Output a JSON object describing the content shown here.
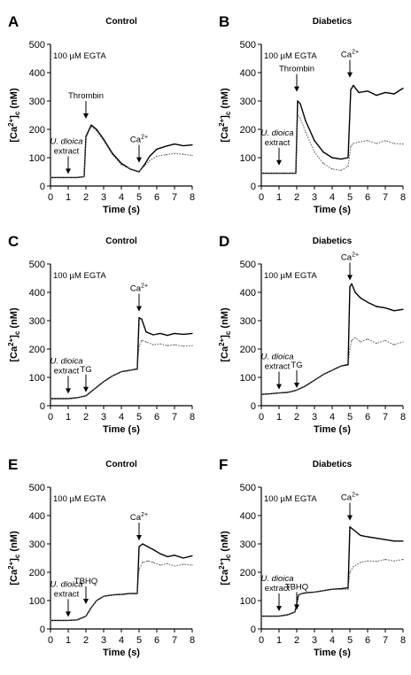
{
  "chart_data": [
    {
      "panel": "A",
      "title": "Control",
      "type": "line",
      "xlabel": "Time (s)",
      "ylabel": "[Ca2+]c (nM)",
      "xlim": [
        0,
        8
      ],
      "ylim": [
        0,
        500
      ],
      "xticks": [
        0,
        1,
        2,
        3,
        4,
        5,
        6,
        7,
        8
      ],
      "yticks": [
        0,
        100,
        200,
        300,
        400,
        500
      ],
      "egta_note": "100 µM EGTA",
      "annotations": [
        {
          "label": "U. dioica extract",
          "x": 1,
          "y": 30,
          "style": "italic-first"
        },
        {
          "label": "Thrombin",
          "x": 2,
          "y": 225
        },
        {
          "label": "Ca2+",
          "x": 5,
          "y": 70
        }
      ],
      "series": [
        {
          "style": "solid",
          "x": [
            0,
            0.5,
            1,
            1.5,
            1.9,
            2.0,
            2.3,
            2.6,
            3,
            3.5,
            4,
            4.5,
            5,
            5.3,
            5.6,
            6,
            6.5,
            7,
            7.5,
            8
          ],
          "values": [
            30,
            30,
            30,
            30,
            33,
            175,
            215,
            200,
            165,
            115,
            80,
            60,
            50,
            75,
            105,
            130,
            140,
            148,
            142,
            145
          ]
        },
        {
          "style": "dotted",
          "x": [
            0,
            0.5,
            1,
            1.5,
            1.9,
            2.0,
            2.3,
            2.6,
            3,
            3.5,
            4,
            4.5,
            5,
            5.3,
            5.6,
            6,
            6.5,
            7,
            7.5,
            8
          ],
          "values": [
            30,
            30,
            30,
            30,
            33,
            170,
            210,
            195,
            160,
            110,
            75,
            60,
            52,
            70,
            90,
            105,
            110,
            115,
            112,
            108
          ]
        }
      ]
    },
    {
      "panel": "B",
      "title": "Diabetics",
      "type": "line",
      "xlabel": "Time (s)",
      "ylabel": "[Ca2+]c (nM)",
      "xlim": [
        0,
        8
      ],
      "ylim": [
        0,
        500
      ],
      "xticks": [
        0,
        1,
        2,
        3,
        4,
        5,
        6,
        7,
        8
      ],
      "yticks": [
        0,
        100,
        200,
        300,
        400,
        500
      ],
      "egta_note": "100 µM EGTA",
      "annotations": [
        {
          "label": "U. dioica extract",
          "x": 1,
          "y": 60,
          "style": "italic-first"
        },
        {
          "label": "Thrombin",
          "x": 2,
          "y": 320
        },
        {
          "label": "Ca2+",
          "x": 5,
          "y": 370
        }
      ],
      "series": [
        {
          "style": "solid",
          "x": [
            0,
            0.5,
            1,
            1.5,
            1.95,
            2.05,
            2.2,
            2.5,
            3,
            3.5,
            4,
            4.5,
            4.9,
            5.05,
            5.2,
            5.5,
            6,
            6.5,
            7,
            7.5,
            8
          ],
          "values": [
            45,
            45,
            45,
            45,
            45,
            300,
            290,
            230,
            160,
            120,
            100,
            95,
            100,
            340,
            355,
            330,
            335,
            320,
            330,
            325,
            345
          ]
        },
        {
          "style": "dotted",
          "x": [
            0,
            0.5,
            1,
            1.5,
            1.95,
            2.05,
            2.2,
            2.5,
            3,
            3.5,
            4,
            4.5,
            4.9,
            5.05,
            5.2,
            5.5,
            6,
            6.5,
            7,
            7.5,
            8
          ],
          "values": [
            45,
            45,
            45,
            45,
            45,
            250,
            240,
            190,
            120,
            80,
            60,
            55,
            70,
            140,
            150,
            155,
            160,
            150,
            160,
            150,
            148
          ]
        }
      ]
    },
    {
      "panel": "C",
      "title": "Control",
      "type": "line",
      "xlabel": "Time (s)",
      "ylabel": "[Ca2+]c (nM)",
      "xlim": [
        0,
        8
      ],
      "ylim": [
        0,
        500
      ],
      "xticks": [
        0,
        1,
        2,
        3,
        4,
        5,
        6,
        7,
        8
      ],
      "yticks": [
        0,
        100,
        200,
        300,
        400,
        500
      ],
      "egta_note": "100 µM EGTA",
      "annotations": [
        {
          "label": "U. dioica extract",
          "x": 1,
          "y": 30,
          "style": "italic-first"
        },
        {
          "label": "TG",
          "x": 2,
          "y": 35
        },
        {
          "label": "Ca2+",
          "x": 5,
          "y": 320
        }
      ],
      "series": [
        {
          "style": "solid",
          "x": [
            0,
            0.5,
            1,
            1.5,
            2,
            2.5,
            3,
            3.5,
            4,
            4.5,
            4.9,
            5.0,
            5.15,
            5.4,
            5.8,
            6.2,
            6.6,
            7,
            7.5,
            8
          ],
          "values": [
            25,
            25,
            25,
            28,
            35,
            60,
            85,
            105,
            120,
            125,
            130,
            310,
            305,
            260,
            250,
            255,
            248,
            255,
            252,
            255
          ]
        },
        {
          "style": "dotted",
          "x": [
            0,
            0.5,
            1,
            1.5,
            2,
            2.5,
            3,
            3.5,
            4,
            4.5,
            4.9,
            5.0,
            5.15,
            5.4,
            5.8,
            6.2,
            6.6,
            7,
            7.5,
            8
          ],
          "values": [
            25,
            25,
            25,
            28,
            35,
            60,
            85,
            105,
            120,
            125,
            128,
            210,
            230,
            225,
            215,
            218,
            212,
            215,
            210,
            212
          ]
        }
      ]
    },
    {
      "panel": "D",
      "title": "Diabetics",
      "type": "line",
      "xlabel": "Time (s)",
      "ylabel": "[Ca2+]c (nM)",
      "xlim": [
        0,
        8
      ],
      "ylim": [
        0,
        500
      ],
      "xticks": [
        0,
        1,
        2,
        3,
        4,
        5,
        6,
        7,
        8
      ],
      "yticks": [
        0,
        100,
        200,
        300,
        400,
        500
      ],
      "egta_note": "100 µM EGTA",
      "annotations": [
        {
          "label": "U. dioica extract",
          "x": 1,
          "y": 45,
          "style": "italic-first"
        },
        {
          "label": "TG",
          "x": 2,
          "y": 50
        },
        {
          "label": "Ca2+",
          "x": 5,
          "y": 430
        }
      ],
      "series": [
        {
          "style": "solid",
          "x": [
            0,
            0.5,
            1,
            1.5,
            2,
            2.5,
            3,
            3.5,
            4,
            4.5,
            4.9,
            5.0,
            5.1,
            5.3,
            5.6,
            6,
            6.5,
            7,
            7.5,
            8
          ],
          "values": [
            40,
            42,
            45,
            47,
            55,
            70,
            90,
            110,
            125,
            140,
            145,
            420,
            430,
            400,
            380,
            365,
            350,
            345,
            335,
            340
          ]
        },
        {
          "style": "dotted",
          "x": [
            0,
            0.5,
            1,
            1.5,
            2,
            2.5,
            3,
            3.5,
            4,
            4.5,
            4.9,
            5.0,
            5.1,
            5.3,
            5.6,
            6,
            6.5,
            7,
            7.5,
            8
          ],
          "values": [
            40,
            42,
            45,
            47,
            55,
            70,
            90,
            110,
            125,
            140,
            142,
            200,
            230,
            240,
            225,
            235,
            220,
            230,
            215,
            225
          ]
        }
      ]
    },
    {
      "panel": "E",
      "title": "Control",
      "type": "line",
      "xlabel": "Time (s)",
      "ylabel": "[Ca2+]c (nM)",
      "xlim": [
        0,
        8
      ],
      "ylim": [
        0,
        500
      ],
      "xticks": [
        0,
        1,
        2,
        3,
        4,
        5,
        6,
        7,
        8
      ],
      "yticks": [
        0,
        100,
        200,
        300,
        400,
        500
      ],
      "egta_note": "100 µM EGTA",
      "annotations": [
        {
          "label": "U. dioica extract",
          "x": 1,
          "y": 30,
          "style": "italic-first"
        },
        {
          "label": "TBHQ",
          "x": 2,
          "y": 75
        },
        {
          "label": "Ca2+",
          "x": 5,
          "y": 300
        }
      ],
      "series": [
        {
          "style": "solid",
          "x": [
            0,
            0.5,
            1,
            1.5,
            2,
            2.3,
            2.6,
            3,
            3.5,
            4,
            4.5,
            4.9,
            5.0,
            5.2,
            5.5,
            5.8,
            6.2,
            6.6,
            7,
            7.5,
            8
          ],
          "values": [
            30,
            30,
            30,
            32,
            45,
            75,
            100,
            115,
            120,
            122,
            125,
            125,
            290,
            300,
            290,
            280,
            265,
            255,
            260,
            250,
            258
          ]
        },
        {
          "style": "dotted",
          "x": [
            0,
            0.5,
            1,
            1.5,
            2,
            2.3,
            2.6,
            3,
            3.5,
            4,
            4.5,
            4.9,
            5.0,
            5.2,
            5.5,
            5.8,
            6.2,
            6.6,
            7,
            7.5,
            8
          ],
          "values": [
            30,
            30,
            30,
            32,
            45,
            75,
            100,
            115,
            120,
            122,
            125,
            125,
            210,
            235,
            240,
            235,
            225,
            230,
            222,
            228,
            225
          ]
        }
      ]
    },
    {
      "panel": "F",
      "title": "Diabetics",
      "type": "line",
      "xlabel": "Time (s)",
      "ylabel": "[Ca2+]c (nM)",
      "xlim": [
        0,
        8
      ],
      "ylim": [
        0,
        500
      ],
      "xticks": [
        0,
        1,
        2,
        3,
        4,
        5,
        6,
        7,
        8
      ],
      "yticks": [
        0,
        100,
        200,
        300,
        400,
        500
      ],
      "egta_note": "100 µM EGTA",
      "annotations": [
        {
          "label": "U. dioica extract",
          "x": 1,
          "y": 50,
          "style": "italic-first"
        },
        {
          "label": "TBHQ",
          "x": 2,
          "y": 55
        },
        {
          "label": "Ca2+",
          "x": 5,
          "y": 370
        }
      ],
      "series": [
        {
          "style": "solid",
          "x": [
            0,
            0.5,
            1,
            1.5,
            1.9,
            2.1,
            2.3,
            2.6,
            3,
            3.5,
            4,
            4.5,
            4.9,
            5.0,
            5.2,
            5.6,
            6,
            6.5,
            7,
            7.5,
            8
          ],
          "values": [
            45,
            45,
            45,
            50,
            60,
            120,
            125,
            128,
            130,
            135,
            140,
            142,
            145,
            360,
            350,
            330,
            325,
            320,
            315,
            310,
            310
          ]
        },
        {
          "style": "dotted",
          "x": [
            0,
            0.5,
            1,
            1.5,
            1.9,
            2.1,
            2.3,
            2.6,
            3,
            3.5,
            4,
            4.5,
            4.9,
            5.0,
            5.2,
            5.6,
            6,
            6.5,
            7,
            7.5,
            8
          ],
          "values": [
            45,
            45,
            45,
            50,
            60,
            120,
            125,
            128,
            130,
            135,
            140,
            140,
            140,
            200,
            220,
            235,
            240,
            238,
            245,
            240,
            245
          ]
        }
      ]
    }
  ]
}
